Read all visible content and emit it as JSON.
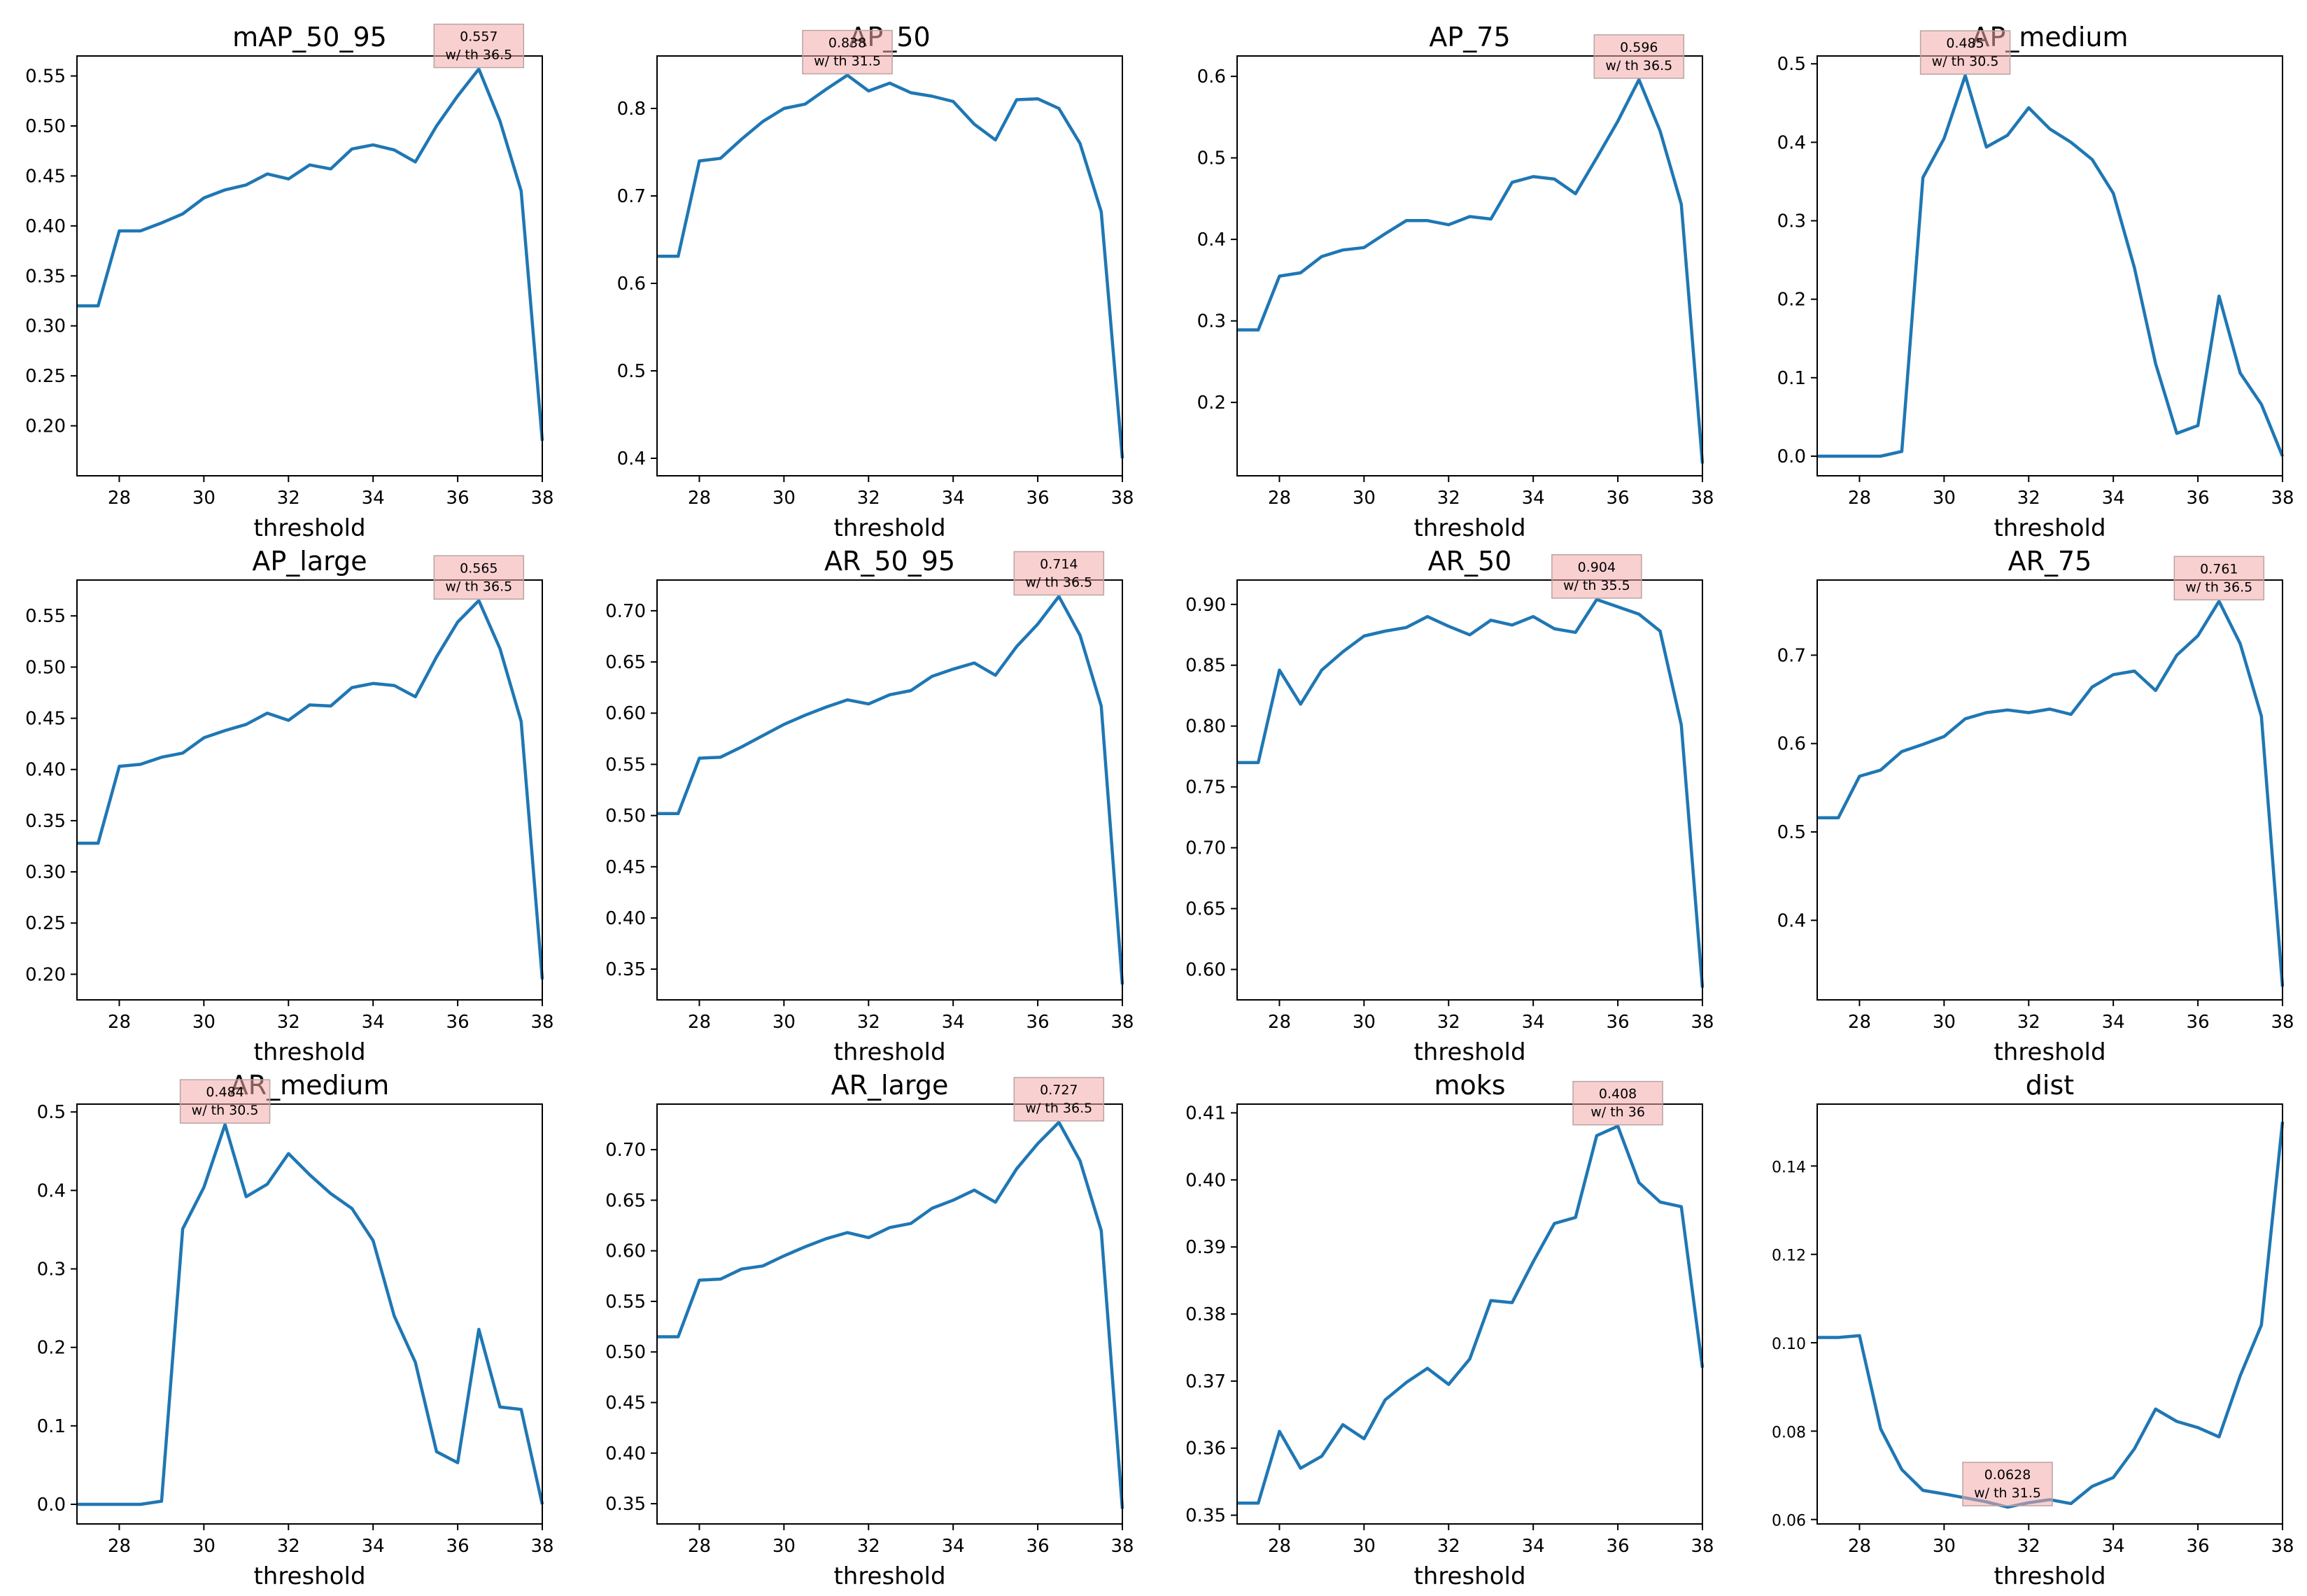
{
  "figure": {
    "colors": {
      "line": "#1f77b4",
      "annotation_box": "#f4a9a9",
      "axes": "#000000",
      "background": "#ffffff"
    }
  },
  "chart_data": [
    {
      "type": "line",
      "title": "mAP_50_95",
      "xlabel": "threshold",
      "ylabel": "",
      "xlim": [
        27,
        38
      ],
      "ylim": [
        0.15,
        0.57
      ],
      "xticks": [
        28,
        30,
        32,
        34,
        36,
        38
      ],
      "yticks": [
        0.2,
        0.25,
        0.3,
        0.35,
        0.4,
        0.45,
        0.5,
        0.55
      ],
      "x": [
        27,
        27.5,
        28,
        28.5,
        29,
        29.5,
        30,
        30.5,
        31,
        31.5,
        32,
        32.5,
        33,
        33.5,
        34,
        34.5,
        35,
        35.5,
        36,
        36.5,
        37,
        37.5,
        38
      ],
      "series": [
        {
          "name": "mAP_50_95",
          "values": [
            0.32,
            0.32,
            0.395,
            0.395,
            0.403,
            0.412,
            0.428,
            0.436,
            0.441,
            0.452,
            0.447,
            0.461,
            0.457,
            0.477,
            0.481,
            0.476,
            0.464,
            0.5,
            0.53,
            0.557,
            0.505,
            0.435,
            0.185
          ]
        }
      ],
      "annotation": {
        "value": "0.557",
        "label": "w/ th 36.5",
        "x": 36.5,
        "y": 0.557
      }
    },
    {
      "type": "line",
      "title": "AP_50",
      "xlabel": "threshold",
      "ylabel": "",
      "xlim": [
        27,
        38
      ],
      "ylim": [
        0.38,
        0.86
      ],
      "xticks": [
        28,
        30,
        32,
        34,
        36,
        38
      ],
      "yticks": [
        0.4,
        0.5,
        0.6,
        0.7,
        0.8
      ],
      "x": [
        27,
        27.5,
        28,
        28.5,
        29,
        29.5,
        30,
        30.5,
        31,
        31.5,
        32,
        32.5,
        33,
        33.5,
        34,
        34.5,
        35,
        35.5,
        36,
        36.5,
        37,
        37.5,
        38
      ],
      "series": [
        {
          "name": "AP_50",
          "values": [
            0.631,
            0.631,
            0.74,
            0.743,
            0.765,
            0.785,
            0.8,
            0.805,
            0.822,
            0.838,
            0.82,
            0.829,
            0.818,
            0.814,
            0.808,
            0.782,
            0.764,
            0.81,
            0.811,
            0.8,
            0.76,
            0.682,
            0.4
          ]
        }
      ],
      "annotation": {
        "value": "0.838",
        "label": "w/ th 31.5",
        "x": 31.5,
        "y": 0.838
      }
    },
    {
      "type": "line",
      "title": "AP_75",
      "xlabel": "threshold",
      "ylabel": "",
      "xlim": [
        27,
        38
      ],
      "ylim": [
        0.11,
        0.625
      ],
      "xticks": [
        28,
        30,
        32,
        34,
        36,
        38
      ],
      "yticks": [
        0.2,
        0.3,
        0.4,
        0.5,
        0.6
      ],
      "x": [
        27,
        27.5,
        28,
        28.5,
        29,
        29.5,
        30,
        30.5,
        31,
        31.5,
        32,
        32.5,
        33,
        33.5,
        34,
        34.5,
        35,
        35.5,
        36,
        36.5,
        37,
        37.5,
        38
      ],
      "series": [
        {
          "name": "AP_75",
          "values": [
            0.289,
            0.289,
            0.355,
            0.359,
            0.379,
            0.387,
            0.39,
            0.407,
            0.423,
            0.423,
            0.418,
            0.428,
            0.425,
            0.47,
            0.477,
            0.474,
            0.456,
            0.5,
            0.545,
            0.596,
            0.533,
            0.443,
            0.125
          ]
        }
      ],
      "annotation": {
        "value": "0.596",
        "label": "w/ th 36.5",
        "x": 36.5,
        "y": 0.596
      }
    },
    {
      "type": "line",
      "title": "AP_medium",
      "xlabel": "threshold",
      "ylabel": "",
      "xlim": [
        27,
        38
      ],
      "ylim": [
        -0.025,
        0.51
      ],
      "xticks": [
        28,
        30,
        32,
        34,
        36,
        38
      ],
      "yticks": [
        0.0,
        0.1,
        0.2,
        0.3,
        0.4,
        0.5
      ],
      "x": [
        27,
        27.5,
        28,
        28.5,
        29,
        29.5,
        30,
        30.5,
        31,
        31.5,
        32,
        32.5,
        33,
        33.5,
        34,
        34.5,
        35,
        35.5,
        36,
        36.5,
        37,
        37.5,
        38
      ],
      "series": [
        {
          "name": "AP_medium",
          "values": [
            0.0,
            0.0,
            0.0,
            0.0,
            0.006,
            0.355,
            0.405,
            0.485,
            0.394,
            0.409,
            0.444,
            0.417,
            0.4,
            0.378,
            0.335,
            0.24,
            0.118,
            0.029,
            0.039,
            0.204,
            0.106,
            0.066,
            0.0
          ]
        }
      ],
      "annotation": {
        "value": "0.485",
        "label": "w/ th 30.5",
        "x": 30.5,
        "y": 0.485
      }
    },
    {
      "type": "line",
      "title": "AP_large",
      "xlabel": "threshold",
      "ylabel": "",
      "xlim": [
        27,
        38
      ],
      "ylim": [
        0.175,
        0.585
      ],
      "xticks": [
        28,
        30,
        32,
        34,
        36,
        38
      ],
      "yticks": [
        0.2,
        0.25,
        0.3,
        0.35,
        0.4,
        0.45,
        0.5,
        0.55
      ],
      "x": [
        27,
        27.5,
        28,
        28.5,
        29,
        29.5,
        30,
        30.5,
        31,
        31.5,
        32,
        32.5,
        33,
        33.5,
        34,
        34.5,
        35,
        35.5,
        36,
        36.5,
        37,
        37.5,
        38
      ],
      "series": [
        {
          "name": "AP_large",
          "values": [
            0.328,
            0.328,
            0.403,
            0.405,
            0.412,
            0.416,
            0.431,
            0.438,
            0.444,
            0.455,
            0.448,
            0.463,
            0.462,
            0.48,
            0.484,
            0.482,
            0.471,
            0.51,
            0.544,
            0.565,
            0.518,
            0.447,
            0.195
          ]
        }
      ],
      "annotation": {
        "value": "0.565",
        "label": "w/ th 36.5",
        "x": 36.5,
        "y": 0.565
      }
    },
    {
      "type": "line",
      "title": "AR_50_95",
      "xlabel": "threshold",
      "ylabel": "",
      "xlim": [
        27,
        38
      ],
      "ylim": [
        0.32,
        0.73
      ],
      "xticks": [
        28,
        30,
        32,
        34,
        36,
        38
      ],
      "yticks": [
        0.35,
        0.4,
        0.45,
        0.5,
        0.55,
        0.6,
        0.65,
        0.7
      ],
      "x": [
        27,
        27.5,
        28,
        28.5,
        29,
        29.5,
        30,
        30.5,
        31,
        31.5,
        32,
        32.5,
        33,
        33.5,
        34,
        34.5,
        35,
        35.5,
        36,
        36.5,
        37,
        37.5,
        38
      ],
      "series": [
        {
          "name": "AR_50_95",
          "values": [
            0.502,
            0.502,
            0.556,
            0.557,
            0.567,
            0.578,
            0.589,
            0.598,
            0.606,
            0.613,
            0.609,
            0.618,
            0.622,
            0.636,
            0.643,
            0.649,
            0.637,
            0.665,
            0.687,
            0.714,
            0.676,
            0.607,
            0.335
          ]
        }
      ],
      "annotation": {
        "value": "0.714",
        "label": "w/ th 36.5",
        "x": 36.5,
        "y": 0.714
      }
    },
    {
      "type": "line",
      "title": "AR_50",
      "xlabel": "threshold",
      "ylabel": "",
      "xlim": [
        27,
        38
      ],
      "ylim": [
        0.575,
        0.92
      ],
      "xticks": [
        28,
        30,
        32,
        34,
        36,
        38
      ],
      "yticks": [
        0.6,
        0.65,
        0.7,
        0.75,
        0.8,
        0.85,
        0.9
      ],
      "x": [
        27,
        27.5,
        28,
        28.5,
        29,
        29.5,
        30,
        30.5,
        31,
        31.5,
        32,
        32.5,
        33,
        33.5,
        34,
        34.5,
        35,
        35.5,
        36,
        36.5,
        37,
        37.5,
        38
      ],
      "series": [
        {
          "name": "AR_50",
          "values": [
            0.77,
            0.77,
            0.846,
            0.818,
            0.846,
            0.861,
            0.874,
            0.878,
            0.881,
            0.89,
            0.882,
            0.875,
            0.887,
            0.883,
            0.89,
            0.88,
            0.877,
            0.904,
            0.898,
            0.892,
            0.878,
            0.801,
            0.585
          ]
        }
      ],
      "annotation": {
        "value": "0.904",
        "label": "w/ th 35.5",
        "x": 35.5,
        "y": 0.904
      }
    },
    {
      "type": "line",
      "title": "AR_75",
      "xlabel": "threshold",
      "ylabel": "",
      "xlim": [
        27,
        38
      ],
      "ylim": [
        0.31,
        0.785
      ],
      "xticks": [
        28,
        30,
        32,
        34,
        36,
        38
      ],
      "yticks": [
        0.4,
        0.5,
        0.6,
        0.7
      ],
      "x": [
        27,
        27.5,
        28,
        28.5,
        29,
        29.5,
        30,
        30.5,
        31,
        31.5,
        32,
        32.5,
        33,
        33.5,
        34,
        34.5,
        35,
        35.5,
        36,
        36.5,
        37,
        37.5,
        38
      ],
      "series": [
        {
          "name": "AR_75",
          "values": [
            0.516,
            0.516,
            0.563,
            0.57,
            0.591,
            0.599,
            0.608,
            0.628,
            0.635,
            0.638,
            0.635,
            0.639,
            0.633,
            0.664,
            0.678,
            0.682,
            0.66,
            0.7,
            0.722,
            0.761,
            0.713,
            0.631,
            0.325
          ]
        }
      ],
      "annotation": {
        "value": "0.761",
        "label": "w/ th 36.5",
        "x": 36.5,
        "y": 0.761
      }
    },
    {
      "type": "line",
      "title": "AR_medium",
      "xlabel": "threshold",
      "ylabel": "",
      "xlim": [
        27,
        38
      ],
      "ylim": [
        -0.025,
        0.51
      ],
      "xticks": [
        28,
        30,
        32,
        34,
        36,
        38
      ],
      "yticks": [
        0.0,
        0.1,
        0.2,
        0.3,
        0.4,
        0.5
      ],
      "x": [
        27,
        27.5,
        28,
        28.5,
        29,
        29.5,
        30,
        30.5,
        31,
        31.5,
        32,
        32.5,
        33,
        33.5,
        34,
        34.5,
        35,
        35.5,
        36,
        36.5,
        37,
        37.5,
        38
      ],
      "series": [
        {
          "name": "AR_medium",
          "values": [
            0.0,
            0.0,
            0.0,
            0.0,
            0.004,
            0.351,
            0.404,
            0.484,
            0.392,
            0.408,
            0.447,
            0.42,
            0.396,
            0.377,
            0.336,
            0.24,
            0.181,
            0.067,
            0.053,
            0.223,
            0.124,
            0.121,
            0.0
          ]
        }
      ],
      "annotation": {
        "value": "0.484",
        "label": "w/ th 30.5",
        "x": 30.5,
        "y": 0.484
      }
    },
    {
      "type": "line",
      "title": "AR_large",
      "xlabel": "threshold",
      "ylabel": "",
      "xlim": [
        27,
        38
      ],
      "ylim": [
        0.33,
        0.745
      ],
      "xticks": [
        28,
        30,
        32,
        34,
        36,
        38
      ],
      "yticks": [
        0.35,
        0.4,
        0.45,
        0.5,
        0.55,
        0.6,
        0.65,
        0.7
      ],
      "x": [
        27,
        27.5,
        28,
        28.5,
        29,
        29.5,
        30,
        30.5,
        31,
        31.5,
        32,
        32.5,
        33,
        33.5,
        34,
        34.5,
        35,
        35.5,
        36,
        36.5,
        37,
        37.5,
        38
      ],
      "series": [
        {
          "name": "AR_large",
          "values": [
            0.515,
            0.515,
            0.571,
            0.572,
            0.582,
            0.585,
            0.595,
            0.604,
            0.612,
            0.618,
            0.613,
            0.623,
            0.627,
            0.642,
            0.65,
            0.66,
            0.648,
            0.681,
            0.706,
            0.727,
            0.689,
            0.62,
            0.345
          ]
        }
      ],
      "annotation": {
        "value": "0.727",
        "label": "w/ th 36.5",
        "x": 36.5,
        "y": 0.727
      }
    },
    {
      "type": "line",
      "title": "moks",
      "xlabel": "threshold",
      "ylabel": "",
      "xlim": [
        27,
        38
      ],
      "ylim": [
        0.3487,
        0.4113
      ],
      "xticks": [
        28,
        30,
        32,
        34,
        36,
        38
      ],
      "yticks": [
        0.35,
        0.36,
        0.37,
        0.38,
        0.39,
        0.4,
        0.41
      ],
      "x": [
        27,
        27.5,
        28,
        28.5,
        29,
        29.5,
        30,
        30.5,
        31,
        31.5,
        32,
        32.5,
        33,
        33.5,
        34,
        34.5,
        35,
        35.5,
        36,
        36.5,
        37,
        37.5,
        38
      ],
      "series": [
        {
          "name": "moks",
          "values": [
            0.3518,
            0.3518,
            0.3625,
            0.357,
            0.3588,
            0.3635,
            0.3614,
            0.3672,
            0.3698,
            0.3719,
            0.3695,
            0.3733,
            0.382,
            0.3817,
            0.3878,
            0.3935,
            0.3944,
            0.4066,
            0.408,
            0.3996,
            0.3967,
            0.396,
            0.372
          ]
        }
      ],
      "annotation": {
        "value": "0.408",
        "label": "w/ th 36",
        "x": 36,
        "y": 0.408
      }
    },
    {
      "type": "line",
      "title": "dist",
      "xlabel": "threshold",
      "ylabel": "",
      "xlim": [
        27,
        38
      ],
      "ylim": [
        0.059,
        0.154
      ],
      "xticks": [
        28,
        30,
        32,
        34,
        36,
        38
      ],
      "yticks": [
        0.06,
        0.08,
        0.1,
        0.12,
        0.14
      ],
      "x": [
        27,
        27.5,
        28,
        28.5,
        29,
        29.5,
        30,
        30.5,
        31,
        31.5,
        32,
        32.5,
        33,
        33.5,
        34,
        34.5,
        35,
        35.5,
        36,
        36.5,
        37,
        37.5,
        38
      ],
      "series": [
        {
          "name": "dist",
          "values": [
            0.1012,
            0.1012,
            0.1016,
            0.0805,
            0.0713,
            0.0666,
            0.0658,
            0.0649,
            0.064,
            0.0628,
            0.0638,
            0.0645,
            0.0636,
            0.0675,
            0.0695,
            0.076,
            0.085,
            0.0822,
            0.0808,
            0.0787,
            0.0925,
            0.104,
            0.15
          ]
        }
      ],
      "annotation": {
        "value": "0.0628",
        "label": "w/ th 31.5",
        "x": 31.5,
        "y": 0.0628
      }
    }
  ]
}
